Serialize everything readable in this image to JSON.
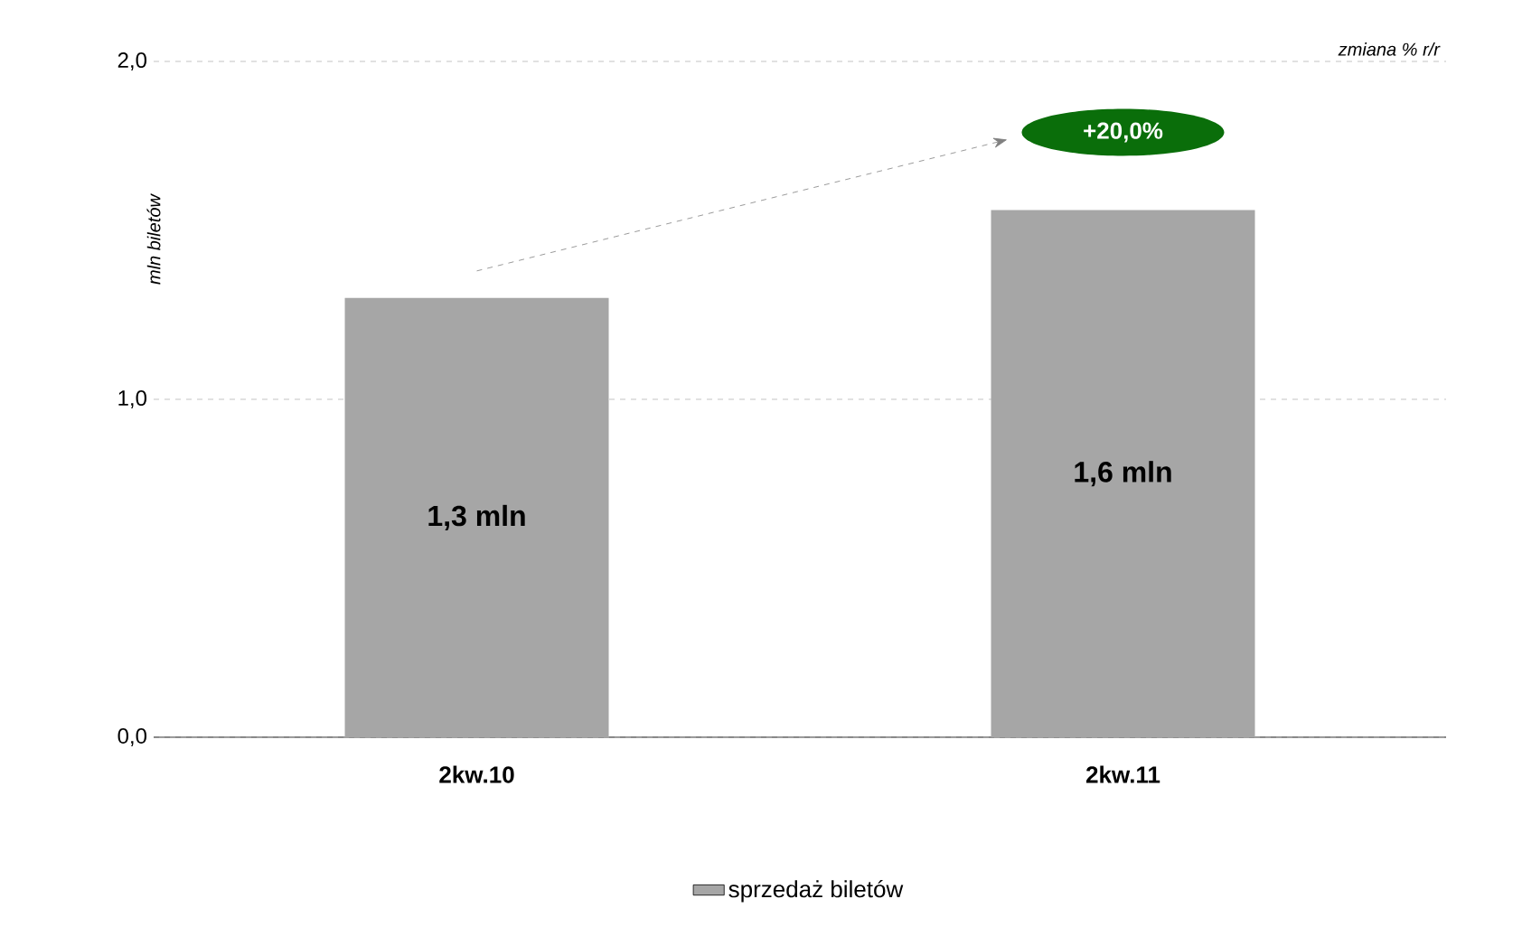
{
  "chart_data": {
    "type": "bar",
    "ylabel": "mln biletów",
    "categories": [
      "2kw.10",
      "2kw.11"
    ],
    "series": [
      {
        "name": "sprzedaż biletów",
        "color": "#a6a6a6",
        "values": [
          1.3,
          1.56
        ],
        "value_labels": [
          "1,3 mln",
          "1,6 mln"
        ]
      }
    ],
    "ylim": [
      0,
      2
    ],
    "yticks": [
      {
        "value": 0,
        "label": "0,0"
      },
      {
        "value": 1,
        "label": "1,0"
      },
      {
        "value": 2,
        "label": "2,0"
      }
    ],
    "grid": "y",
    "legend": "bottom",
    "annotations": [
      "zmiana % r/r",
      "+20,0%"
    ]
  }
}
